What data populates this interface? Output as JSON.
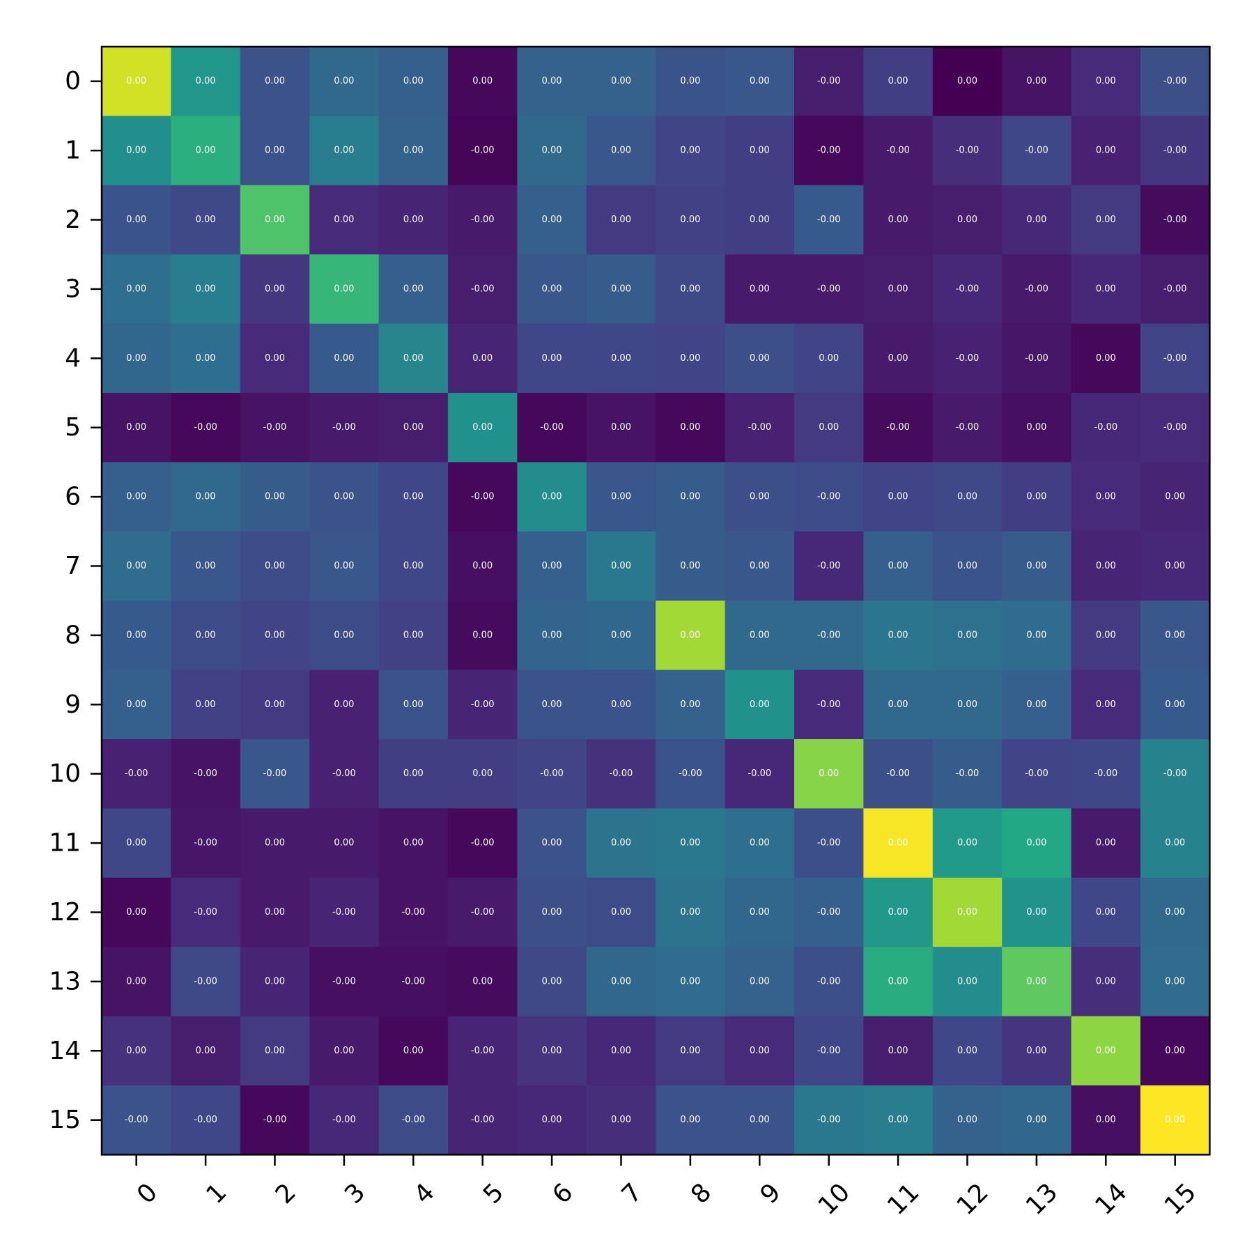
{
  "chart_data": {
    "type": "heatmap",
    "colormap": "viridis",
    "title": "",
    "xlabel": "",
    "ylabel": "",
    "x_categories": [
      "0",
      "1",
      "2",
      "3",
      "4",
      "5",
      "6",
      "7",
      "8",
      "9",
      "10",
      "11",
      "12",
      "13",
      "14",
      "15"
    ],
    "y_categories": [
      "0",
      "1",
      "2",
      "3",
      "4",
      "5",
      "6",
      "7",
      "8",
      "9",
      "10",
      "11",
      "12",
      "13",
      "14",
      "15"
    ],
    "value_range": [
      0,
      1
    ],
    "intensity": [
      [
        0.93,
        0.52,
        0.25,
        0.34,
        0.3,
        0.02,
        0.31,
        0.31,
        0.26,
        0.27,
        0.08,
        0.18,
        0.0,
        0.05,
        0.12,
        0.24
      ],
      [
        0.49,
        0.63,
        0.25,
        0.42,
        0.31,
        0.01,
        0.34,
        0.27,
        0.2,
        0.18,
        0.02,
        0.07,
        0.13,
        0.21,
        0.09,
        0.16
      ],
      [
        0.26,
        0.22,
        0.72,
        0.12,
        0.1,
        0.07,
        0.3,
        0.17,
        0.19,
        0.18,
        0.28,
        0.07,
        0.08,
        0.11,
        0.17,
        0.03
      ],
      [
        0.36,
        0.42,
        0.16,
        0.66,
        0.3,
        0.08,
        0.27,
        0.29,
        0.22,
        0.07,
        0.07,
        0.08,
        0.11,
        0.07,
        0.11,
        0.08
      ],
      [
        0.33,
        0.36,
        0.12,
        0.28,
        0.45,
        0.1,
        0.21,
        0.21,
        0.2,
        0.24,
        0.2,
        0.07,
        0.09,
        0.06,
        0.02,
        0.2
      ],
      [
        0.05,
        0.02,
        0.05,
        0.07,
        0.08,
        0.5,
        0.02,
        0.05,
        0.02,
        0.09,
        0.17,
        0.03,
        0.07,
        0.04,
        0.11,
        0.12
      ],
      [
        0.3,
        0.34,
        0.29,
        0.26,
        0.21,
        0.02,
        0.48,
        0.27,
        0.29,
        0.24,
        0.23,
        0.2,
        0.22,
        0.18,
        0.12,
        0.1
      ],
      [
        0.35,
        0.27,
        0.23,
        0.27,
        0.21,
        0.04,
        0.3,
        0.4,
        0.29,
        0.27,
        0.11,
        0.3,
        0.26,
        0.29,
        0.1,
        0.11
      ],
      [
        0.28,
        0.23,
        0.2,
        0.23,
        0.19,
        0.03,
        0.32,
        0.33,
        0.86,
        0.34,
        0.34,
        0.39,
        0.37,
        0.35,
        0.17,
        0.27
      ],
      [
        0.3,
        0.19,
        0.17,
        0.09,
        0.25,
        0.1,
        0.26,
        0.26,
        0.31,
        0.5,
        0.12,
        0.34,
        0.34,
        0.3,
        0.12,
        0.28
      ],
      [
        0.09,
        0.05,
        0.27,
        0.09,
        0.18,
        0.18,
        0.2,
        0.14,
        0.26,
        0.11,
        0.82,
        0.24,
        0.29,
        0.2,
        0.21,
        0.44
      ],
      [
        0.21,
        0.06,
        0.07,
        0.07,
        0.05,
        0.02,
        0.25,
        0.38,
        0.4,
        0.36,
        0.24,
        0.99,
        0.54,
        0.6,
        0.07,
        0.44
      ],
      [
        0.02,
        0.12,
        0.07,
        0.1,
        0.05,
        0.07,
        0.24,
        0.23,
        0.38,
        0.33,
        0.3,
        0.53,
        0.86,
        0.51,
        0.21,
        0.34
      ],
      [
        0.05,
        0.22,
        0.1,
        0.04,
        0.04,
        0.03,
        0.22,
        0.33,
        0.35,
        0.31,
        0.24,
        0.62,
        0.48,
        0.75,
        0.13,
        0.35
      ],
      [
        0.14,
        0.08,
        0.17,
        0.07,
        0.02,
        0.1,
        0.15,
        0.11,
        0.17,
        0.12,
        0.21,
        0.08,
        0.21,
        0.15,
        0.83,
        0.02
      ],
      [
        0.25,
        0.21,
        0.02,
        0.11,
        0.23,
        0.1,
        0.11,
        0.13,
        0.25,
        0.25,
        0.4,
        0.42,
        0.31,
        0.33,
        0.04,
        1.0
      ]
    ],
    "cell_labels": [
      [
        "0.00",
        "0.00",
        "0.00",
        "0.00",
        "0.00",
        "0.00",
        "0.00",
        "0.00",
        "0.00",
        "0.00",
        "-0.00",
        "0.00",
        "0.00",
        "0.00",
        "0.00",
        "-0.00"
      ],
      [
        "0.00",
        "0.00",
        "0.00",
        "0.00",
        "0.00",
        "-0.00",
        "0.00",
        "0.00",
        "0.00",
        "0.00",
        "-0.00",
        "-0.00",
        "-0.00",
        "-0.00",
        "0.00",
        "-0.00"
      ],
      [
        "0.00",
        "0.00",
        "0.00",
        "0.00",
        "0.00",
        "-0.00",
        "0.00",
        "0.00",
        "0.00",
        "0.00",
        "-0.00",
        "0.00",
        "0.00",
        "0.00",
        "0.00",
        "-0.00"
      ],
      [
        "0.00",
        "0.00",
        "0.00",
        "0.00",
        "0.00",
        "-0.00",
        "0.00",
        "0.00",
        "0.00",
        "0.00",
        "-0.00",
        "0.00",
        "-0.00",
        "-0.00",
        "0.00",
        "-0.00"
      ],
      [
        "0.00",
        "0.00",
        "0.00",
        "0.00",
        "0.00",
        "0.00",
        "0.00",
        "0.00",
        "0.00",
        "0.00",
        "0.00",
        "0.00",
        "-0.00",
        "-0.00",
        "0.00",
        "-0.00"
      ],
      [
        "0.00",
        "-0.00",
        "-0.00",
        "-0.00",
        "0.00",
        "0.00",
        "-0.00",
        "0.00",
        "0.00",
        "-0.00",
        "0.00",
        "-0.00",
        "-0.00",
        "0.00",
        "-0.00",
        "-0.00"
      ],
      [
        "0.00",
        "0.00",
        "0.00",
        "0.00",
        "0.00",
        "-0.00",
        "0.00",
        "0.00",
        "0.00",
        "0.00",
        "-0.00",
        "0.00",
        "0.00",
        "0.00",
        "0.00",
        "0.00"
      ],
      [
        "0.00",
        "0.00",
        "0.00",
        "0.00",
        "0.00",
        "0.00",
        "0.00",
        "0.00",
        "0.00",
        "0.00",
        "-0.00",
        "0.00",
        "0.00",
        "0.00",
        "0.00",
        "0.00"
      ],
      [
        "0.00",
        "0.00",
        "0.00",
        "0.00",
        "0.00",
        "0.00",
        "0.00",
        "0.00",
        "0.00",
        "0.00",
        "-0.00",
        "0.00",
        "0.00",
        "0.00",
        "0.00",
        "0.00"
      ],
      [
        "0.00",
        "0.00",
        "0.00",
        "0.00",
        "0.00",
        "-0.00",
        "0.00",
        "0.00",
        "0.00",
        "0.00",
        "-0.00",
        "0.00",
        "0.00",
        "0.00",
        "0.00",
        "0.00"
      ],
      [
        "-0.00",
        "-0.00",
        "-0.00",
        "-0.00",
        "0.00",
        "0.00",
        "-0.00",
        "-0.00",
        "-0.00",
        "-0.00",
        "0.00",
        "-0.00",
        "-0.00",
        "-0.00",
        "-0.00",
        "-0.00"
      ],
      [
        "0.00",
        "-0.00",
        "0.00",
        "0.00",
        "0.00",
        "-0.00",
        "0.00",
        "0.00",
        "0.00",
        "0.00",
        "-0.00",
        "0.00",
        "0.00",
        "0.00",
        "0.00",
        "0.00"
      ],
      [
        "0.00",
        "-0.00",
        "0.00",
        "-0.00",
        "-0.00",
        "-0.00",
        "0.00",
        "0.00",
        "0.00",
        "0.00",
        "-0.00",
        "0.00",
        "0.00",
        "0.00",
        "0.00",
        "0.00"
      ],
      [
        "0.00",
        "-0.00",
        "0.00",
        "-0.00",
        "-0.00",
        "0.00",
        "0.00",
        "0.00",
        "0.00",
        "0.00",
        "-0.00",
        "0.00",
        "0.00",
        "0.00",
        "0.00",
        "0.00"
      ],
      [
        "0.00",
        "0.00",
        "0.00",
        "0.00",
        "0.00",
        "-0.00",
        "0.00",
        "0.00",
        "0.00",
        "0.00",
        "-0.00",
        "0.00",
        "0.00",
        "0.00",
        "0.00",
        "0.00"
      ],
      [
        "-0.00",
        "-0.00",
        "-0.00",
        "-0.00",
        "-0.00",
        "-0.00",
        "0.00",
        "0.00",
        "0.00",
        "0.00",
        "-0.00",
        "0.00",
        "0.00",
        "0.00",
        "0.00",
        "0.00"
      ]
    ],
    "colorbar": false,
    "grid": false,
    "legend": "none"
  }
}
